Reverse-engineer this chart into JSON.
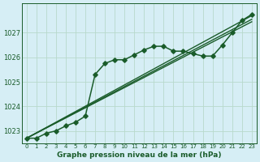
{
  "background_color": "#d6eef5",
  "grid_color": "#b8d9cc",
  "line_color": "#1a5c2a",
  "xlabel": "Graphe pression niveau de la mer (hPa)",
  "xlim": [
    -0.5,
    23.5
  ],
  "ylim": [
    1022.5,
    1028.2
  ],
  "yticks": [
    1023,
    1024,
    1025,
    1026,
    1027
  ],
  "xticks": [
    0,
    1,
    2,
    3,
    4,
    5,
    6,
    7,
    8,
    9,
    10,
    11,
    12,
    13,
    14,
    15,
    16,
    17,
    18,
    19,
    20,
    21,
    22,
    23
  ],
  "series": [
    {
      "x": [
        0,
        1,
        2,
        3,
        4,
        5,
        6,
        7,
        8,
        9,
        10,
        11,
        12,
        13,
        14,
        15,
        16,
        17,
        18,
        19,
        20,
        21,
        22,
        23
      ],
      "y": [
        1022.7,
        1022.7,
        1022.9,
        1023.0,
        1023.2,
        1023.35,
        1023.6,
        1025.3,
        1025.75,
        1025.9,
        1025.9,
        1026.1,
        1026.3,
        1026.45,
        1026.45,
        1026.25,
        1026.25,
        1026.15,
        1026.05,
        1026.05,
        1026.5,
        1027.0,
        1027.5,
        1027.75
      ],
      "marker": "D",
      "markersize": 2.8,
      "linewidth": 1.1,
      "zorder": 5
    },
    {
      "x": [
        0,
        23
      ],
      "y": [
        1022.7,
        1027.7
      ],
      "marker": null,
      "markersize": 0,
      "linewidth": 1.0,
      "zorder": 2
    },
    {
      "x": [
        0,
        23
      ],
      "y": [
        1022.7,
        1027.55
      ],
      "marker": null,
      "markersize": 0,
      "linewidth": 1.0,
      "zorder": 2
    },
    {
      "x": [
        0,
        23
      ],
      "y": [
        1022.7,
        1027.45
      ],
      "marker": null,
      "markersize": 0,
      "linewidth": 1.0,
      "zorder": 2
    }
  ]
}
